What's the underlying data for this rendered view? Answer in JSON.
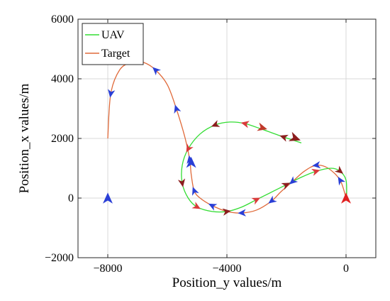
{
  "chart_data": {
    "type": "line",
    "xlabel": "Position_y values/m",
    "ylabel": "Position_x values/m",
    "xlim": [
      -9000,
      1000
    ],
    "ylim": [
      -2000,
      6000
    ],
    "xticks": [
      -8000,
      -4000,
      0
    ],
    "xtick_labels": [
      "−8000",
      "−4000",
      "0"
    ],
    "yticks": [
      -2000,
      0,
      2000,
      4000,
      6000
    ],
    "ytick_labels": [
      "−2000",
      "0",
      "2000",
      "4000",
      "6000"
    ],
    "grid": true,
    "legend_position": "top-left",
    "series": [
      {
        "name": "UAV",
        "color": "#33dd33",
        "x": [
          -1500,
          -2100,
          -2800,
          -3400,
          -3900,
          -4400,
          -4900,
          -5300,
          -5500,
          -5500,
          -5300,
          -5000,
          -4500,
          -4000,
          -3500,
          -3000,
          -2500,
          -2000,
          -1500,
          -1000,
          -500,
          -200,
          0,
          20
        ],
        "y": [
          1850,
          2050,
          2300,
          2500,
          2550,
          2450,
          2150,
          1650,
          1100,
          500,
          0,
          -300,
          -450,
          -450,
          -300,
          -50,
          200,
          450,
          700,
          900,
          1000,
          900,
          600,
          0
        ]
      },
      {
        "name": "Target",
        "color": "#e06a3a",
        "x": [
          0,
          -200,
          -600,
          -1000,
          -1400,
          -1800,
          -2200,
          -2500,
          -3000,
          -3500,
          -4000,
          -4500,
          -4900,
          -5100,
          -5200,
          -5250,
          -5400,
          -5700,
          -6000,
          -6400,
          -6800,
          -7200,
          -7600,
          -7900,
          -8000
        ],
        "y": [
          0,
          600,
          1000,
          1100,
          900,
          550,
          200,
          -100,
          -400,
          -500,
          -450,
          -250,
          0,
          250,
          800,
          1300,
          2000,
          3000,
          3800,
          4300,
          4550,
          4550,
          4300,
          3500,
          2000
        ]
      }
    ],
    "markers_note": ""
  }
}
